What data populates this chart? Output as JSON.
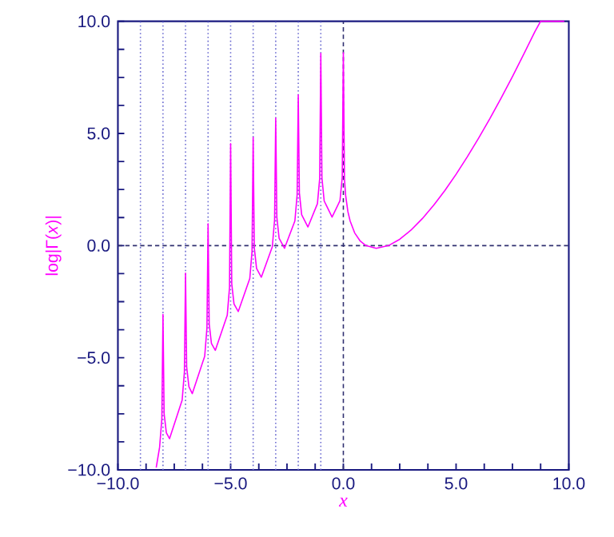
{
  "chart_data": {
    "type": "line",
    "xlabel": "*x*",
    "ylabel": "log|Γ(*x*)|",
    "x": [
      -8.3,
      -8.15,
      -8.05,
      -8,
      -7.95,
      -7.85,
      -7.71,
      -7.15,
      -7.05,
      -7,
      -6.95,
      -6.85,
      -6.7,
      -6.15,
      -6.05,
      -6,
      -5.95,
      -5.85,
      -5.68,
      -5.15,
      -5.05,
      -5,
      -4.95,
      -4.85,
      -4.66,
      -4.15,
      -4.05,
      -4,
      -3.95,
      -3.85,
      -3.64,
      -3.15,
      -3.05,
      -3,
      -2.95,
      -2.85,
      -2.61,
      -2.15,
      -2.05,
      -2,
      -1.95,
      -1.85,
      -1.57,
      -1.15,
      -1.05,
      -1,
      -0.95,
      -0.85,
      -0.5,
      -0.15,
      -0.05,
      0,
      0.05,
      0.1,
      0.2,
      0.3,
      0.5,
      0.75,
      1,
      1.46,
      2,
      2.5,
      3,
      3.5,
      4,
      4.5,
      5,
      5.5,
      6,
      6.5,
      7,
      7.5,
      8,
      8.5,
      8.75,
      9.8
    ],
    "series": [
      {
        "color": "#ff00ff",
        "values": [
          -9.9,
          -8.99,
          -7.71,
          -3.07,
          -7.5,
          -8.35,
          -8.61,
          -6.89,
          -5.63,
          -1.23,
          -5.42,
          -6.29,
          -6.6,
          -4.93,
          -3.67,
          0.97,
          -3.49,
          -4.37,
          -4.67,
          -3.11,
          -1.87,
          4.54,
          -1.7,
          -2.6,
          -2.94,
          -1.47,
          -0.25,
          4.82,
          -0.1,
          -1.02,
          -1.41,
          -0.05,
          1.15,
          5.68,
          1.27,
          0.33,
          -0.12,
          1.1,
          2.26,
          6.72,
          2.35,
          1.38,
          0.83,
          1.87,
          2.98,
          8.57,
          3.02,
          1.99,
          1.27,
          2.0,
          3.03,
          8.6,
          2.97,
          2.25,
          1.52,
          1.1,
          0.57,
          0.2,
          0,
          -0.12,
          0,
          0.28,
          0.69,
          1.2,
          1.79,
          2.45,
          3.18,
          3.96,
          4.79,
          5.66,
          6.58,
          7.53,
          8.53,
          9.55,
          10,
          10
        ]
      }
    ],
    "xlim": [
      -10,
      10
    ],
    "ylim": [
      -10,
      10
    ],
    "xticks": [
      {
        "value": -10,
        "label": "−10.0"
      },
      {
        "value": -8.75,
        "label": null
      },
      {
        "value": -7.5,
        "label": null
      },
      {
        "value": -6.25,
        "label": null
      },
      {
        "value": -5,
        "label": "−5.0"
      },
      {
        "value": -3.75,
        "label": null
      },
      {
        "value": -2.5,
        "label": null
      },
      {
        "value": -1.25,
        "label": null
      },
      {
        "value": 0,
        "label": "0.0"
      },
      {
        "value": 1.25,
        "label": null
      },
      {
        "value": 2.5,
        "label": null
      },
      {
        "value": 3.75,
        "label": null
      },
      {
        "value": 5,
        "label": "5.0"
      },
      {
        "value": 6.25,
        "label": null
      },
      {
        "value": 7.5,
        "label": null
      },
      {
        "value": 8.75,
        "label": null
      },
      {
        "value": 10,
        "label": "10.0"
      }
    ],
    "yticks": [
      {
        "value": -10,
        "label": "−10.0"
      },
      {
        "value": -8.75,
        "label": null
      },
      {
        "value": -7.5,
        "label": null
      },
      {
        "value": -6.25,
        "label": null
      },
      {
        "value": -5,
        "label": "−5.0"
      },
      {
        "value": -3.75,
        "label": null
      },
      {
        "value": -2.5,
        "label": null
      },
      {
        "value": -1.25,
        "label": null
      },
      {
        "value": 0,
        "label": "0.0"
      },
      {
        "value": 1.25,
        "label": null
      },
      {
        "value": 2.5,
        "label": null
      },
      {
        "value": 3.75,
        "label": null
      },
      {
        "value": 5,
        "label": "5.0"
      },
      {
        "value": 6.25,
        "label": null
      },
      {
        "value": 7.5,
        "label": null
      },
      {
        "value": 8.75,
        "label": null
      },
      {
        "value": 10,
        "label": "10.0"
      }
    ],
    "ref_lines": [
      {
        "axis": "x",
        "value": -9,
        "color": "#6a6ad0",
        "line_style": "dotted"
      },
      {
        "axis": "x",
        "value": -8,
        "color": "#6a6ad0",
        "line_style": "dotted"
      },
      {
        "axis": "x",
        "value": -7,
        "color": "#6a6ad0",
        "line_style": "dotted"
      },
      {
        "axis": "x",
        "value": -6,
        "color": "#6a6ad0",
        "line_style": "dotted"
      },
      {
        "axis": "x",
        "value": -5,
        "color": "#6a6ad0",
        "line_style": "dotted"
      },
      {
        "axis": "x",
        "value": -4,
        "color": "#6a6ad0",
        "line_style": "dotted"
      },
      {
        "axis": "x",
        "value": -3,
        "color": "#6a6ad0",
        "line_style": "dotted"
      },
      {
        "axis": "x",
        "value": -2,
        "color": "#6a6ad0",
        "line_style": "dotted"
      },
      {
        "axis": "x",
        "value": -1,
        "color": "#6a6ad0",
        "line_style": "dotted"
      },
      {
        "axis": "x",
        "value": 0,
        "color": "#303070",
        "line_style": "dashed"
      },
      {
        "axis": "y",
        "value": 0,
        "color": "#303070",
        "line_style": "dashed"
      }
    ],
    "grid": false,
    "marker": "none",
    "line_style": "solid"
  }
}
